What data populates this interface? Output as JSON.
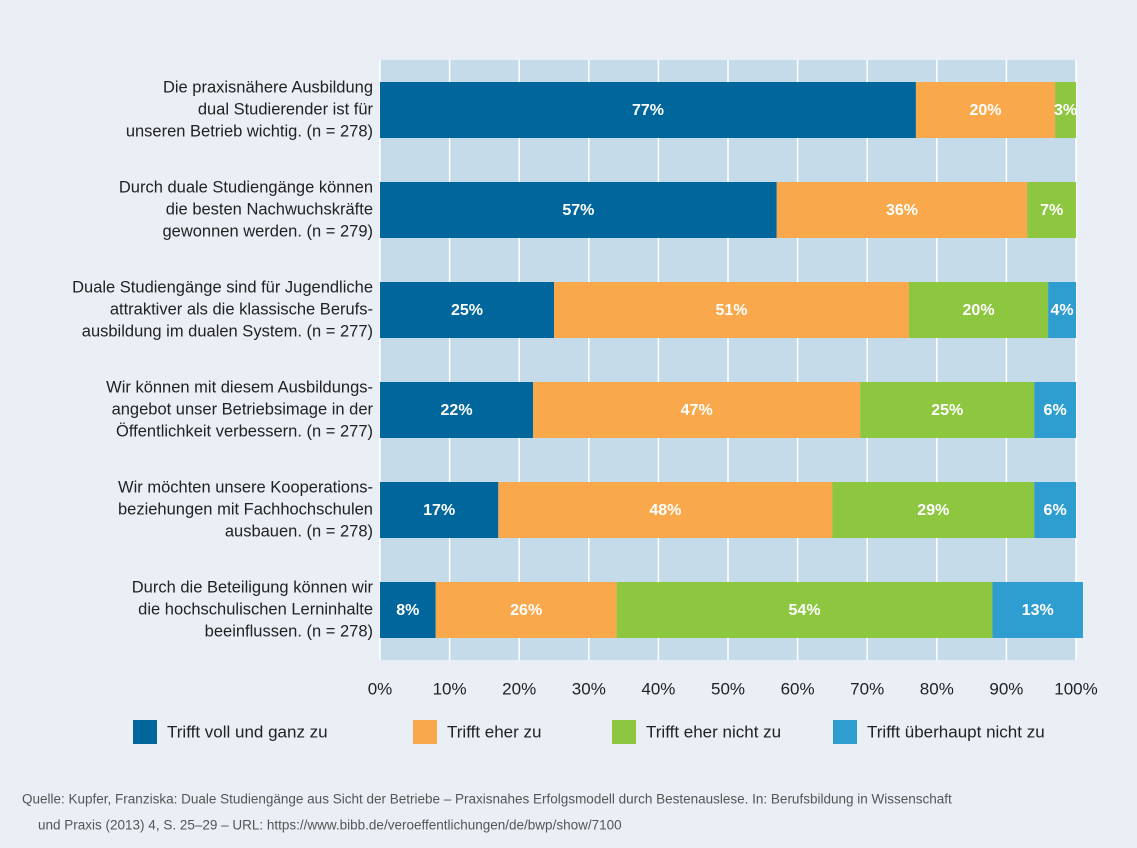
{
  "chart_data": {
    "type": "stacked-barh",
    "categories": [
      [
        "Die praxisnähere Ausbildung",
        "dual Studierender ist für",
        "unseren Betrieb wichtig. (n = 278)"
      ],
      [
        "Durch duale Studiengänge können",
        "die besten Nachwuchskräfte",
        "gewonnen werden. (n = 279)"
      ],
      [
        "Duale Studiengänge sind für Jugendliche",
        "attraktiver als die klassische Berufs-",
        "ausbildung im dualen System. (n = 277)"
      ],
      [
        "Wir können mit diesem Ausbildungs-",
        "angebot unser Betriebsimage in der",
        "Öffentlichkeit verbessern. (n = 277)"
      ],
      [
        "Wir möchten unsere Kooperations-",
        "beziehungen mit Fachhochschulen",
        "ausbauen. (n = 278)"
      ],
      [
        "Durch die Beteiligung können wir",
        "die hochschulischen Lerninhalte",
        "beeinflussen. (n = 278)"
      ]
    ],
    "series": [
      {
        "name": "Trifft voll und ganz zu",
        "color": "#00669b",
        "values": [
          77,
          57,
          25,
          22,
          17,
          8
        ],
        "value_labels": [
          "77%",
          "57%",
          "25%",
          "22%",
          "17%",
          "8%"
        ]
      },
      {
        "name": "Trifft eher zu",
        "color": "#f9a94b",
        "values": [
          20,
          36,
          51,
          47,
          48,
          26
        ],
        "value_labels": [
          "20%",
          "36%",
          "51%",
          "47%",
          "48%",
          "26%"
        ]
      },
      {
        "name": "Trifft eher nicht zu",
        "color": "#8dc63f",
        "values": [
          3,
          7,
          20,
          25,
          29,
          54
        ],
        "value_labels": [
          "3%",
          "7%",
          "20%",
          "25%",
          "29%",
          "54%"
        ]
      },
      {
        "name": "Trifft überhaupt nicht zu",
        "color": "#2e9dd0",
        "values": [
          null,
          null,
          4,
          6,
          6,
          13
        ],
        "value_labels": [
          null,
          null,
          "4%",
          "6%",
          "6%",
          "13%"
        ]
      }
    ],
    "xlim": [
      0,
      100
    ],
    "xticks": [
      {
        "value": 0,
        "label": "0%"
      },
      {
        "value": 10,
        "label": "10%"
      },
      {
        "value": 20,
        "label": "20%"
      },
      {
        "value": 30,
        "label": "30%"
      },
      {
        "value": 40,
        "label": "40%"
      },
      {
        "value": 50,
        "label": "50%"
      },
      {
        "value": 60,
        "label": "60%"
      },
      {
        "value": 70,
        "label": "70%"
      },
      {
        "value": 80,
        "label": "80%"
      },
      {
        "value": 90,
        "label": "90%"
      },
      {
        "value": 100,
        "label": "100%"
      }
    ],
    "grid": true,
    "legend": "bottom",
    "source": [
      "Quelle: Kupfer, Franziska: Duale Studiengänge aus Sicht der Betriebe – Praxisnahes Erfolgsmodell durch Bestenauslese. In: Berufsbildung in Wissenschaft",
      "und Praxis (2013) 4, S. 25–29 – URL: https://www.bibb.de/veroeffentlichungen/de/bwp/show/7100"
    ]
  }
}
